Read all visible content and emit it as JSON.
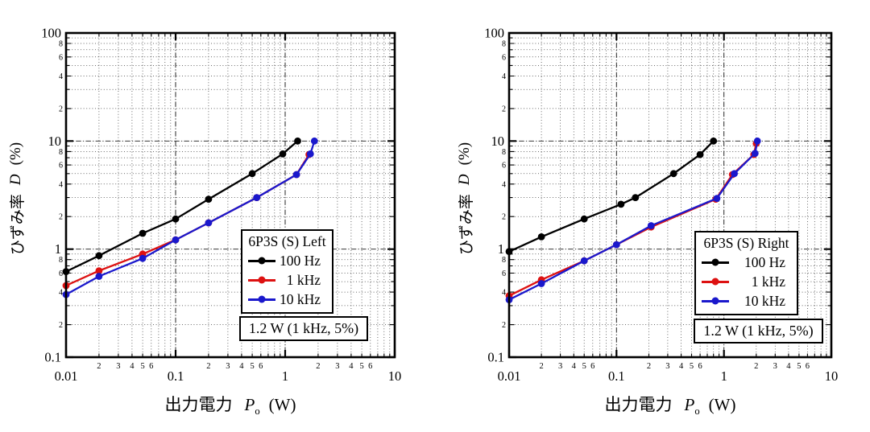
{
  "figure": {
    "background": "#ffffff",
    "grid_color_minor": "#3a3a3a",
    "grid_color_major": "#1a1a1a",
    "axis_color": "#000000"
  },
  "chart_data": [
    {
      "id": "left-channel",
      "type": "line",
      "legend_title": "6P3S (S) Left",
      "legend_position": "right-middle",
      "annotation": "1.2 W (1 kHz, 5%)",
      "grid": true,
      "x_axis": {
        "scale": "log",
        "min": 0.01,
        "max": 10,
        "decade_labels": [
          "0.01",
          "0.1",
          "1",
          "10"
        ],
        "labeled_minor_multipliers": [
          2,
          3,
          4,
          5,
          6
        ],
        "title_prefix": "出力電力",
        "title_symbol": "P",
        "title_sub": "o",
        "title_unit": "(W)"
      },
      "y_axis": {
        "scale": "log",
        "min": 0.1,
        "max": 100,
        "decade_labels": [
          "0.1",
          "1",
          "10",
          "100"
        ],
        "labeled_minor_multipliers": [
          2,
          4,
          6,
          8
        ],
        "title_prefix": "ひずみ率",
        "title_symbol": "D",
        "title_unit": "(%)"
      },
      "series": [
        {
          "name": "100 Hz",
          "color": "#000000",
          "points": [
            [
              0.01,
              0.62
            ],
            [
              0.02,
              0.87
            ],
            [
              0.05,
              1.4
            ],
            [
              0.1,
              1.9
            ],
            [
              0.2,
              2.9
            ],
            [
              0.5,
              5.0
            ],
            [
              0.95,
              7.6
            ],
            [
              1.3,
              10
            ]
          ]
        },
        {
          "name": "1 kHz",
          "color": "#dd1111",
          "points": [
            [
              0.01,
              0.46
            ],
            [
              0.02,
              0.63
            ],
            [
              0.05,
              0.9
            ],
            [
              0.1,
              1.22
            ],
            [
              0.2,
              1.75
            ],
            [
              0.55,
              3.0
            ],
            [
              1.27,
              4.9
            ],
            [
              1.65,
              7.5
            ]
          ]
        },
        {
          "name": "10 kHz",
          "color": "#1a18cc",
          "points": [
            [
              0.01,
              0.38
            ],
            [
              0.02,
              0.56
            ],
            [
              0.05,
              0.82
            ],
            [
              0.1,
              1.22
            ],
            [
              0.2,
              1.75
            ],
            [
              0.55,
              3.0
            ],
            [
              1.27,
              4.9
            ],
            [
              1.7,
              7.6
            ],
            [
              1.85,
              10
            ]
          ]
        }
      ]
    },
    {
      "id": "right-channel",
      "type": "line",
      "legend_title": "6P3S (S) Right",
      "legend_position": "right-middle",
      "annotation": "1.2 W (1 kHz, 5%)",
      "grid": true,
      "x_axis": {
        "scale": "log",
        "min": 0.01,
        "max": 10,
        "decade_labels": [
          "0.01",
          "0.1",
          "1",
          "10"
        ],
        "labeled_minor_multipliers": [
          2,
          3,
          4,
          5,
          6
        ],
        "title_prefix": "出力電力",
        "title_symbol": "P",
        "title_sub": "o",
        "title_unit": "(W)"
      },
      "y_axis": {
        "scale": "log",
        "min": 0.1,
        "max": 100,
        "decade_labels": [
          "0.1",
          "1",
          "10",
          "100"
        ],
        "labeled_minor_multipliers": [
          2,
          4,
          6,
          8
        ],
        "title_prefix": "ひずみ率",
        "title_symbol": "D",
        "title_unit": "(%)"
      },
      "series": [
        {
          "name": "100 Hz",
          "color": "#000000",
          "points": [
            [
              0.01,
              0.95
            ],
            [
              0.02,
              1.3
            ],
            [
              0.05,
              1.9
            ],
            [
              0.11,
              2.6
            ],
            [
              0.15,
              3.0
            ],
            [
              0.34,
              5.0
            ],
            [
              0.6,
              7.5
            ],
            [
              0.8,
              10
            ]
          ]
        },
        {
          "name": "1 kHz",
          "color": "#dd1111",
          "points": [
            [
              0.01,
              0.37
            ],
            [
              0.02,
              0.52
            ],
            [
              0.05,
              0.78
            ],
            [
              0.1,
              1.1
            ],
            [
              0.21,
              1.6
            ],
            [
              0.84,
              2.9
            ],
            [
              1.2,
              4.9
            ],
            [
              1.9,
              7.5
            ],
            [
              2.0,
              9.5
            ]
          ]
        },
        {
          "name": "10 kHz",
          "color": "#1a18cc",
          "points": [
            [
              0.01,
              0.34
            ],
            [
              0.02,
              0.48
            ],
            [
              0.05,
              0.78
            ],
            [
              0.1,
              1.1
            ],
            [
              0.21,
              1.65
            ],
            [
              0.86,
              2.95
            ],
            [
              1.25,
              5.0
            ],
            [
              1.95,
              7.7
            ],
            [
              2.05,
              10
            ]
          ]
        }
      ]
    }
  ]
}
